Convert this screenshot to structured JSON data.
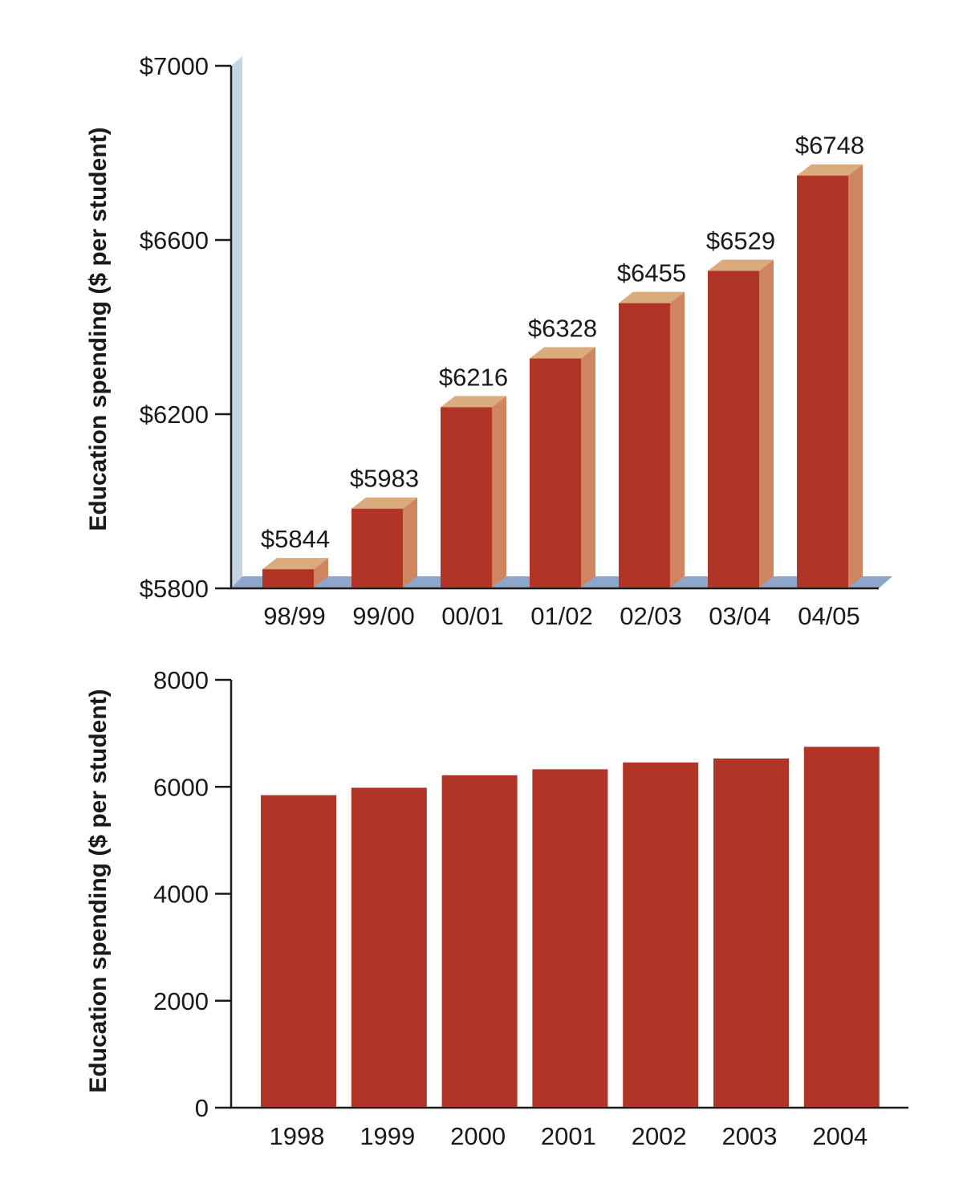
{
  "chart_data": [
    {
      "type": "bar",
      "style": "3d",
      "categories": [
        "98/99",
        "99/00",
        "00/01",
        "01/02",
        "02/03",
        "03/04",
        "04/05"
      ],
      "values": [
        5844,
        5983,
        6216,
        6328,
        6455,
        6529,
        6748
      ],
      "value_labels": [
        "$5844",
        "$5983",
        "$6216",
        "$6328",
        "$6455",
        "$6529",
        "$6748"
      ],
      "yticks": [
        5800,
        6200,
        6600,
        7000
      ],
      "ytick_labels": [
        "$5800",
        "$6200",
        "$6600",
        "$7000"
      ],
      "ylim": [
        5800,
        7000
      ],
      "ylabel": "Education spending ($ per student)",
      "xlabel": "",
      "colors": {
        "bar_front": "#b03527",
        "bar_side": "#cf8560",
        "bar_top": "#d9ab7d",
        "wall": "#c5d4e3",
        "floor": "#8ea6c9"
      }
    },
    {
      "type": "bar",
      "style": "flat",
      "categories": [
        "1998",
        "1999",
        "2000",
        "2001",
        "2002",
        "2003",
        "2004"
      ],
      "values": [
        5844,
        5983,
        6216,
        6328,
        6455,
        6529,
        6748
      ],
      "yticks": [
        0,
        2000,
        4000,
        6000,
        8000
      ],
      "ytick_labels": [
        "0",
        "2000",
        "4000",
        "6000",
        "8000"
      ],
      "ylim": [
        0,
        8000
      ],
      "ylabel": "Education spending ($ per student)",
      "xlabel": "",
      "colors": {
        "bar": "#b03527"
      }
    }
  ]
}
